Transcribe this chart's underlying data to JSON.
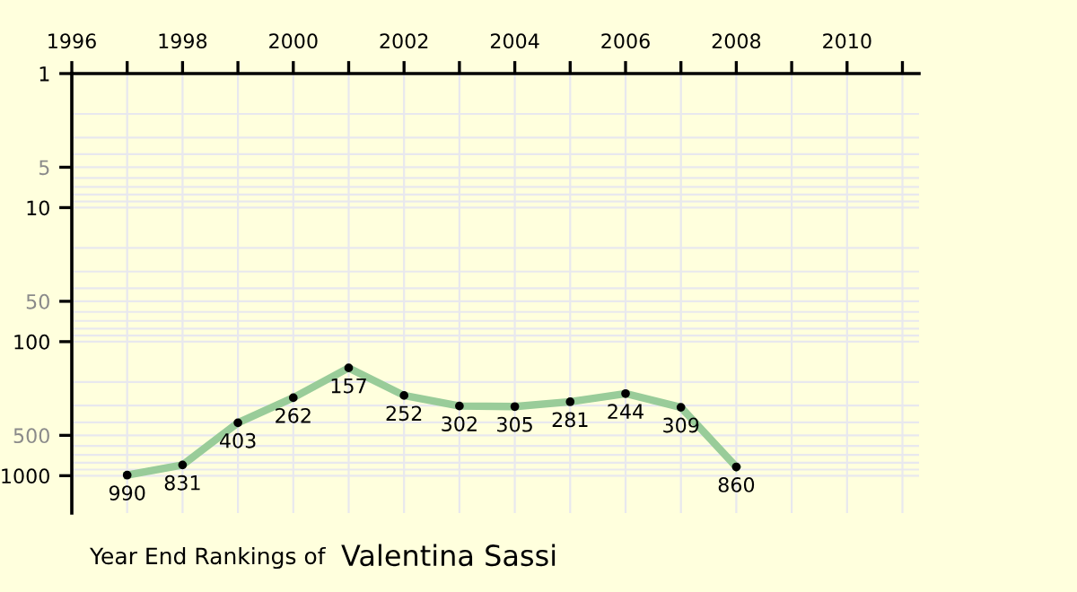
{
  "chart_data": {
    "type": "line",
    "title": "Year End Rankings of",
    "subtitle": "Valentina Sassi",
    "x": [
      1997,
      1998,
      1999,
      2000,
      2001,
      2002,
      2003,
      2004,
      2005,
      2006,
      2007,
      2008
    ],
    "series": [
      {
        "color": "#99cc99",
        "values": [
          990,
          831,
          403,
          262,
          157,
          252,
          302,
          305,
          281,
          244,
          309,
          860
        ]
      }
    ],
    "log": true,
    "ylim": [
      1900,
      1
    ],
    "yticks": [
      1,
      5,
      10,
      50,
      100,
      500,
      1000
    ],
    "xlim": [
      1996,
      2011.3
    ],
    "xticks": [
      1996,
      {
        "value": 1997,
        "label": null
      },
      1998,
      {
        "value": 1999,
        "label": null
      },
      2000,
      {
        "value": 2001,
        "label": null
      },
      2002,
      {
        "value": 2003,
        "label": null
      },
      2004,
      {
        "value": 2005,
        "label": null
      },
      2006,
      {
        "value": 2007,
        "label": null
      },
      2008,
      {
        "value": 2009,
        "label": null
      },
      2010,
      {
        "value": 2011,
        "label": null
      }
    ],
    "grid": true,
    "marker": "circle",
    "line_style": "solid",
    "data_labels": true
  }
}
